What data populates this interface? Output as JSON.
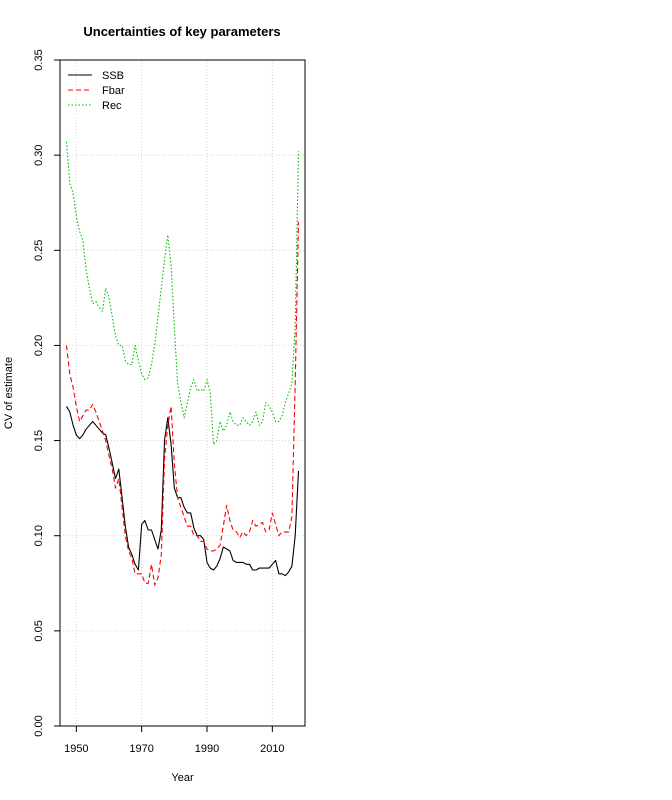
{
  "chart_data": {
    "type": "line",
    "title": "Uncertainties of key parameters",
    "xlabel": "Year",
    "ylabel": "CV of estimate",
    "xlim": [
      1945,
      2020
    ],
    "ylim": [
      0,
      0.35
    ],
    "xticks": [
      1950,
      1970,
      1990,
      2010
    ],
    "xtick_labels": [
      "1950",
      "1970",
      "1990",
      "2010"
    ],
    "yticks": [
      0.0,
      0.05,
      0.1,
      0.15,
      0.2,
      0.25,
      0.3,
      0.35
    ],
    "ytick_labels": [
      "0.00",
      "0.05",
      "0.10",
      "0.15",
      "0.20",
      "0.25",
      "0.30",
      "0.35"
    ],
    "grid": true,
    "legend_position": "top-left",
    "series": [
      {
        "name": "SSB",
        "color": "#000000",
        "dash": "solid",
        "x": [
          1947,
          1948,
          1949,
          1950,
          1951,
          1952,
          1953,
          1954,
          1955,
          1956,
          1957,
          1958,
          1959,
          1960,
          1961,
          1962,
          1963,
          1964,
          1965,
          1966,
          1967,
          1968,
          1969,
          1970,
          1971,
          1972,
          1973,
          1974,
          1975,
          1976,
          1977,
          1978,
          1979,
          1980,
          1981,
          1982,
          1983,
          1984,
          1985,
          1986,
          1987,
          1988,
          1989,
          1990,
          1991,
          1992,
          1993,
          1994,
          1995,
          1996,
          1997,
          1998,
          1999,
          2000,
          2001,
          2002,
          2003,
          2004,
          2005,
          2006,
          2007,
          2008,
          2009,
          2010,
          2011,
          2012,
          2013,
          2014,
          2015,
          2016,
          2017,
          2018
        ],
        "values": [
          0.168,
          0.165,
          0.158,
          0.153,
          0.151,
          0.153,
          0.156,
          0.158,
          0.16,
          0.158,
          0.156,
          0.154,
          0.153,
          0.146,
          0.138,
          0.13,
          0.135,
          0.12,
          0.105,
          0.094,
          0.09,
          0.085,
          0.082,
          0.106,
          0.108,
          0.103,
          0.103,
          0.098,
          0.093,
          0.103,
          0.15,
          0.162,
          0.148,
          0.125,
          0.12,
          0.12,
          0.115,
          0.112,
          0.112,
          0.104,
          0.1,
          0.1,
          0.098,
          0.086,
          0.083,
          0.082,
          0.084,
          0.088,
          0.094,
          0.093,
          0.092,
          0.087,
          0.086,
          0.086,
          0.086,
          0.085,
          0.085,
          0.082,
          0.082,
          0.083,
          0.083,
          0.083,
          0.083,
          0.085,
          0.087,
          0.08,
          0.08,
          0.079,
          0.081,
          0.084,
          0.1,
          0.134
        ]
      },
      {
        "name": "Fbar",
        "color": "#ff0000",
        "dash": "dashed",
        "x": [
          1947,
          1948,
          1949,
          1950,
          1951,
          1952,
          1953,
          1954,
          1955,
          1956,
          1957,
          1958,
          1959,
          1960,
          1961,
          1962,
          1963,
          1964,
          1965,
          1966,
          1967,
          1968,
          1969,
          1970,
          1971,
          1972,
          1973,
          1974,
          1975,
          1976,
          1977,
          1978,
          1979,
          1980,
          1981,
          1982,
          1983,
          1984,
          1985,
          1986,
          1987,
          1988,
          1989,
          1990,
          1991,
          1992,
          1993,
          1994,
          1995,
          1996,
          1997,
          1998,
          1999,
          2000,
          2001,
          2002,
          2003,
          2004,
          2005,
          2006,
          2007,
          2008,
          2009,
          2010,
          2011,
          2012,
          2013,
          2014,
          2015,
          2016,
          2017,
          2018
        ],
        "values": [
          0.2,
          0.185,
          0.178,
          0.168,
          0.16,
          0.163,
          0.166,
          0.166,
          0.169,
          0.165,
          0.16,
          0.155,
          0.15,
          0.142,
          0.135,
          0.125,
          0.13,
          0.115,
          0.1,
          0.092,
          0.088,
          0.08,
          0.08,
          0.08,
          0.075,
          0.075,
          0.085,
          0.074,
          0.078,
          0.09,
          0.14,
          0.158,
          0.168,
          0.138,
          0.12,
          0.115,
          0.11,
          0.105,
          0.105,
          0.1,
          0.1,
          0.097,
          0.097,
          0.093,
          0.092,
          0.092,
          0.093,
          0.095,
          0.105,
          0.116,
          0.108,
          0.103,
          0.102,
          0.099,
          0.102,
          0.1,
          0.102,
          0.108,
          0.105,
          0.106,
          0.107,
          0.102,
          0.103,
          0.112,
          0.106,
          0.1,
          0.102,
          0.102,
          0.102,
          0.11,
          0.18,
          0.265
        ]
      },
      {
        "name": "Rec",
        "color": "#00bb00",
        "dash": "dotted",
        "x": [
          1947,
          1948,
          1949,
          1950,
          1951,
          1952,
          1953,
          1954,
          1955,
          1956,
          1957,
          1958,
          1959,
          1960,
          1961,
          1962,
          1963,
          1964,
          1965,
          1966,
          1967,
          1968,
          1969,
          1970,
          1971,
          1972,
          1973,
          1974,
          1975,
          1976,
          1977,
          1978,
          1979,
          1980,
          1981,
          1982,
          1983,
          1984,
          1985,
          1986,
          1987,
          1988,
          1989,
          1990,
          1991,
          1992,
          1993,
          1994,
          1995,
          1996,
          1997,
          1998,
          1999,
          2000,
          2001,
          2002,
          2003,
          2004,
          2005,
          2006,
          2007,
          2008,
          2009,
          2010,
          2011,
          2012,
          2013,
          2014,
          2015,
          2016,
          2017,
          2018
        ],
        "values": [
          0.307,
          0.285,
          0.28,
          0.268,
          0.26,
          0.255,
          0.24,
          0.23,
          0.222,
          0.223,
          0.22,
          0.218,
          0.23,
          0.225,
          0.215,
          0.205,
          0.2,
          0.2,
          0.192,
          0.19,
          0.19,
          0.2,
          0.192,
          0.185,
          0.182,
          0.183,
          0.19,
          0.2,
          0.215,
          0.23,
          0.245,
          0.258,
          0.242,
          0.21,
          0.18,
          0.17,
          0.162,
          0.17,
          0.178,
          0.182,
          0.176,
          0.177,
          0.176,
          0.182,
          0.175,
          0.148,
          0.15,
          0.16,
          0.155,
          0.158,
          0.165,
          0.16,
          0.158,
          0.158,
          0.162,
          0.16,
          0.158,
          0.16,
          0.165,
          0.158,
          0.16,
          0.17,
          0.168,
          0.165,
          0.16,
          0.16,
          0.163,
          0.17,
          0.175,
          0.18,
          0.21,
          0.302
        ]
      }
    ]
  }
}
